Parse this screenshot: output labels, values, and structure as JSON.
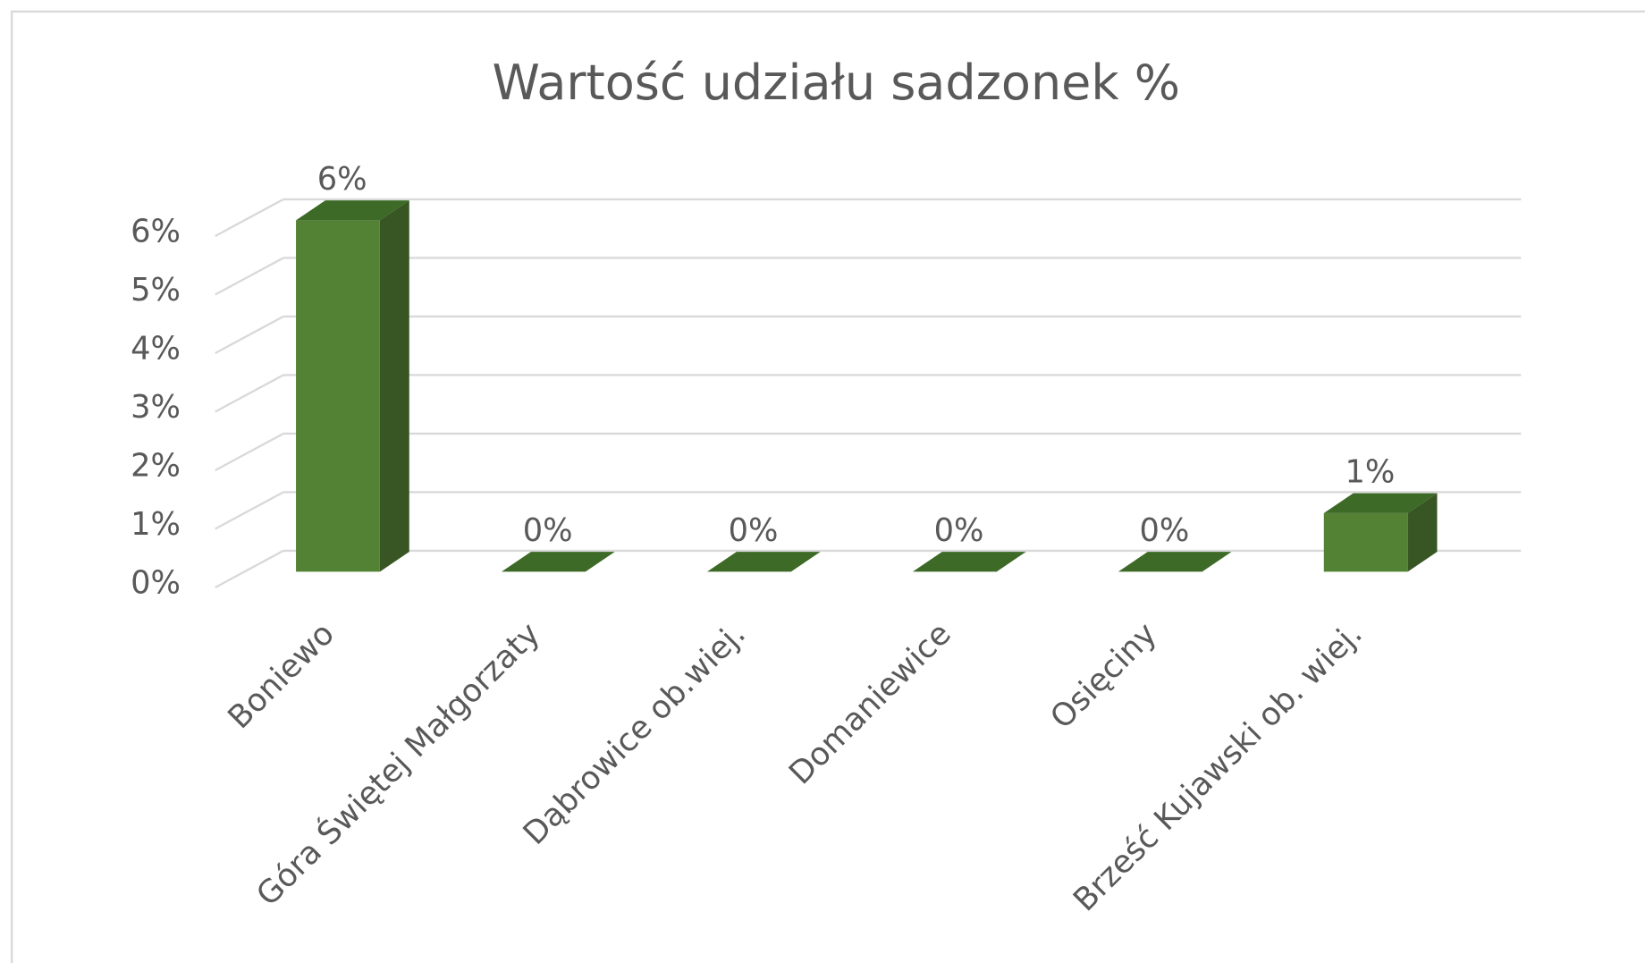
{
  "chart_data": {
    "type": "bar3d",
    "title": "Wartość udziału sadzonek %",
    "categories": [
      "Boniewo",
      "Góra Świętej Małgorzaty",
      "Dąbrowice ob.wiej.",
      "Domaniewice",
      "Osięciny",
      "Brześć Kujawski ob. wiej."
    ],
    "values": [
      6,
      0,
      0,
      0,
      0,
      1
    ],
    "value_labels": [
      "6%",
      "0%",
      "0%",
      "0%",
      "0%",
      "1%"
    ],
    "color": "#548235",
    "ylim": [
      0,
      6
    ],
    "yticks": [
      {
        "value": 0,
        "label": "0%"
      },
      {
        "value": 1,
        "label": "1%"
      },
      {
        "value": 2,
        "label": "2%"
      },
      {
        "value": 3,
        "label": "3%"
      },
      {
        "value": 4,
        "label": "4%"
      },
      {
        "value": 5,
        "label": "5%"
      },
      {
        "value": 6,
        "label": "6%"
      }
    ],
    "grid": true
  }
}
